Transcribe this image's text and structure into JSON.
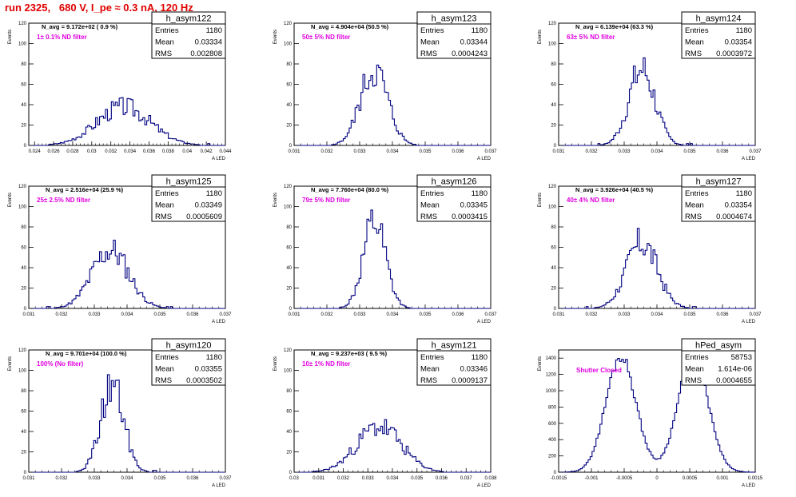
{
  "header": {
    "title": "run 2325,   680 V, I_pe ≈ 0.3 nA, 120 Hz"
  },
  "colors": {
    "title": "#e00000",
    "filter_label": "#e000e0",
    "histogram": "#000080",
    "axis": "#000000"
  },
  "chart_data": [
    {
      "type": "histogram",
      "name": "h_asym122",
      "stats": {
        "Entries": "1180",
        "Mean": "0.03334",
        "RMS": "0.002808"
      },
      "n_avg": "N_avg = 9.172e+02 ( 0.9 %)",
      "filter": "1± 0.1% ND filter",
      "xlabel": "A_{LED}",
      "ylabel": "Events",
      "xlim": [
        0.0234,
        0.044
      ],
      "ylim": [
        0,
        120
      ],
      "x_ticks": [
        "0.024",
        "0.026",
        "0.028",
        "0.03",
        "0.032",
        "0.034",
        "0.036",
        "0.038",
        "0.04",
        "0.042",
        "0.044"
      ],
      "x_tick_vals": [
        0.024,
        0.026,
        0.028,
        0.03,
        0.032,
        0.034,
        0.036,
        0.038,
        0.04,
        0.042,
        0.044
      ],
      "y_ticks": [
        0,
        20,
        40,
        60,
        80,
        100,
        120
      ],
      "gen": {
        "mean": 0.03334,
        "rms": 0.0028,
        "peak": 40,
        "seed": 3
      }
    },
    {
      "type": "histogram",
      "name": "h_asym123",
      "stats": {
        "Entries": "1180",
        "Mean": "0.03344",
        "RMS": "0.0004243"
      },
      "n_avg": "N_avg = 4.904e+04 (50.5 %)",
      "filter": "50± 5% ND filter",
      "xlabel": "A_{LED}",
      "ylabel": "Events",
      "xlim": [
        0.031,
        0.037
      ],
      "ylim": [
        0,
        120
      ],
      "x_ticks": [
        "0.031",
        "0.032",
        "0.033",
        "0.034",
        "0.035",
        "0.036",
        "0.037"
      ],
      "x_tick_vals": [
        0.031,
        0.032,
        0.033,
        0.034,
        0.035,
        0.036,
        0.037
      ],
      "y_ticks": [
        0,
        20,
        40,
        60,
        80,
        100,
        120
      ],
      "gen": {
        "mean": 0.03344,
        "rms": 0.00042,
        "peak": 78,
        "seed": 5
      }
    },
    {
      "type": "histogram",
      "name": "h_asym124",
      "stats": {
        "Entries": "1180",
        "Mean": "0.03354",
        "RMS": "0.0003972"
      },
      "n_avg": "N_avg = 6.139e+04 (63.3 %)",
      "filter": "63± 5% ND filter",
      "xlabel": "A_{LED}",
      "ylabel": "Events",
      "xlim": [
        0.031,
        0.037
      ],
      "ylim": [
        0,
        120
      ],
      "x_ticks": [
        "0.031",
        "0.032",
        "0.033",
        "0.034",
        "0.035",
        "0.036",
        "0.037"
      ],
      "x_tick_vals": [
        0.031,
        0.032,
        0.033,
        0.034,
        0.035,
        0.036,
        0.037
      ],
      "y_ticks": [
        0,
        20,
        40,
        60,
        80,
        100,
        120
      ],
      "gen": {
        "mean": 0.03354,
        "rms": 0.0004,
        "peak": 78,
        "seed": 7
      }
    },
    {
      "type": "histogram",
      "name": "h_asym125",
      "stats": {
        "Entries": "1180",
        "Mean": "0.03349",
        "RMS": "0.0005609"
      },
      "n_avg": "N_avg = 2.516e+04 (25.9 %)",
      "filter": "25± 2.5% ND filter",
      "xlabel": "A_{LED}",
      "ylabel": "Events",
      "xlim": [
        0.031,
        0.037
      ],
      "ylim": [
        0,
        120
      ],
      "x_ticks": [
        "0.031",
        "0.032",
        "0.033",
        "0.034",
        "0.035",
        "0.036",
        "0.037"
      ],
      "x_tick_vals": [
        0.031,
        0.032,
        0.033,
        0.034,
        0.035,
        0.036,
        0.037
      ],
      "y_ticks": [
        0,
        20,
        40,
        60,
        80,
        100,
        120
      ],
      "gen": {
        "mean": 0.03349,
        "rms": 0.00056,
        "peak": 60,
        "seed": 11
      }
    },
    {
      "type": "histogram",
      "name": "h_asym126",
      "stats": {
        "Entries": "1180",
        "Mean": "0.03345",
        "RMS": "0.0003415"
      },
      "n_avg": "N_avg = 7.760e+04 (80.0 %)",
      "filter": "79± 5% ND filter",
      "xlabel": "A_{LED}",
      "ylabel": "Events",
      "xlim": [
        0.031,
        0.037
      ],
      "ylim": [
        0,
        120
      ],
      "x_ticks": [
        "0.031",
        "0.032",
        "0.033",
        "0.034",
        "0.035",
        "0.036",
        "0.037"
      ],
      "x_tick_vals": [
        0.031,
        0.032,
        0.033,
        0.034,
        0.035,
        0.036,
        0.037
      ],
      "y_ticks": [
        0,
        20,
        40,
        60,
        80,
        100,
        120
      ],
      "gen": {
        "mean": 0.03345,
        "rms": 0.00034,
        "peak": 90,
        "seed": 13
      }
    },
    {
      "type": "histogram",
      "name": "h_asym127",
      "stats": {
        "Entries": "1180",
        "Mean": "0.03354",
        "RMS": "0.0004674"
      },
      "n_avg": "N_avg = 3.926e+04 (40.5 %)",
      "filter": "40± 4% ND filter",
      "xlabel": "A_{LED}",
      "ylabel": "Events",
      "xlim": [
        0.031,
        0.037
      ],
      "ylim": [
        0,
        120
      ],
      "x_ticks": [
        "0.031",
        "0.032",
        "0.033",
        "0.034",
        "0.035",
        "0.036",
        "0.037"
      ],
      "x_tick_vals": [
        0.031,
        0.032,
        0.033,
        0.034,
        0.035,
        0.036,
        0.037
      ],
      "y_ticks": [
        0,
        20,
        40,
        60,
        80,
        100,
        120
      ],
      "gen": {
        "mean": 0.03354,
        "rms": 0.00047,
        "peak": 68,
        "seed": 17
      }
    },
    {
      "type": "histogram",
      "name": "h_asym120",
      "stats": {
        "Entries": "1180",
        "Mean": "0.03355",
        "RMS": "0.0003502"
      },
      "n_avg": "N_avg = 9.701e+04 (100.0 %)",
      "filter": "100% (No filter)",
      "xlabel": "A_{LED}",
      "ylabel": "Events",
      "xlim": [
        0.031,
        0.037
      ],
      "ylim": [
        0,
        120
      ],
      "x_ticks": [
        "0.031",
        "0.032",
        "0.033",
        "0.034",
        "0.035",
        "0.036",
        "0.037"
      ],
      "x_tick_vals": [
        0.031,
        0.032,
        0.033,
        0.034,
        0.035,
        0.036,
        0.037
      ],
      "y_ticks": [
        0,
        20,
        40,
        60,
        80,
        100,
        120
      ],
      "gen": {
        "mean": 0.03355,
        "rms": 0.00035,
        "peak": 90,
        "seed": 19
      }
    },
    {
      "type": "histogram",
      "name": "h_asym121",
      "stats": {
        "Entries": "1180",
        "Mean": "0.03346",
        "RMS": "0.0009137"
      },
      "n_avg": "N_avg = 9.237e+03 ( 9.5 %)",
      "filter": "10± 1% ND filter",
      "xlabel": "A_{LED}",
      "ylabel": "Events",
      "xlim": [
        0.03,
        0.038
      ],
      "ylim": [
        0,
        120
      ],
      "x_ticks": [
        "0.03",
        "0.031",
        "0.032",
        "0.033",
        "0.034",
        "0.035",
        "0.036",
        "0.037",
        "0.038"
      ],
      "x_tick_vals": [
        0.03,
        0.031,
        0.032,
        0.033,
        0.034,
        0.035,
        0.036,
        0.037,
        0.038
      ],
      "y_ticks": [
        0,
        20,
        40,
        60,
        80,
        100,
        120
      ],
      "gen": {
        "mean": 0.03346,
        "rms": 0.00091,
        "peak": 47,
        "seed": 23
      }
    },
    {
      "type": "histogram",
      "name": "hPed_asym",
      "stats": {
        "Entries": "58753",
        "Mean": "1.614e-06",
        "RMS": "0.0004655"
      },
      "n_avg": "",
      "filter": "Shutter Closed",
      "xlabel": "A_{LED}",
      "ylabel": "Events",
      "xlim": [
        -0.0015,
        0.0015
      ],
      "ylim": [
        0,
        1500
      ],
      "x_ticks": [
        "-0.0015",
        "-0.001",
        "-0.0005",
        "0",
        "0.0005",
        "0.001",
        "0.0015"
      ],
      "x_tick_vals": [
        -0.0015,
        -0.001,
        -0.0005,
        0,
        0.0005,
        0.001,
        0.0015
      ],
      "y_ticks": [
        0,
        200,
        400,
        600,
        800,
        1000,
        1200,
        1400
      ],
      "gen": {
        "bimodal": true,
        "mean": 0,
        "rms": 0.00046,
        "peak": 1450,
        "seed": 29
      }
    }
  ]
}
